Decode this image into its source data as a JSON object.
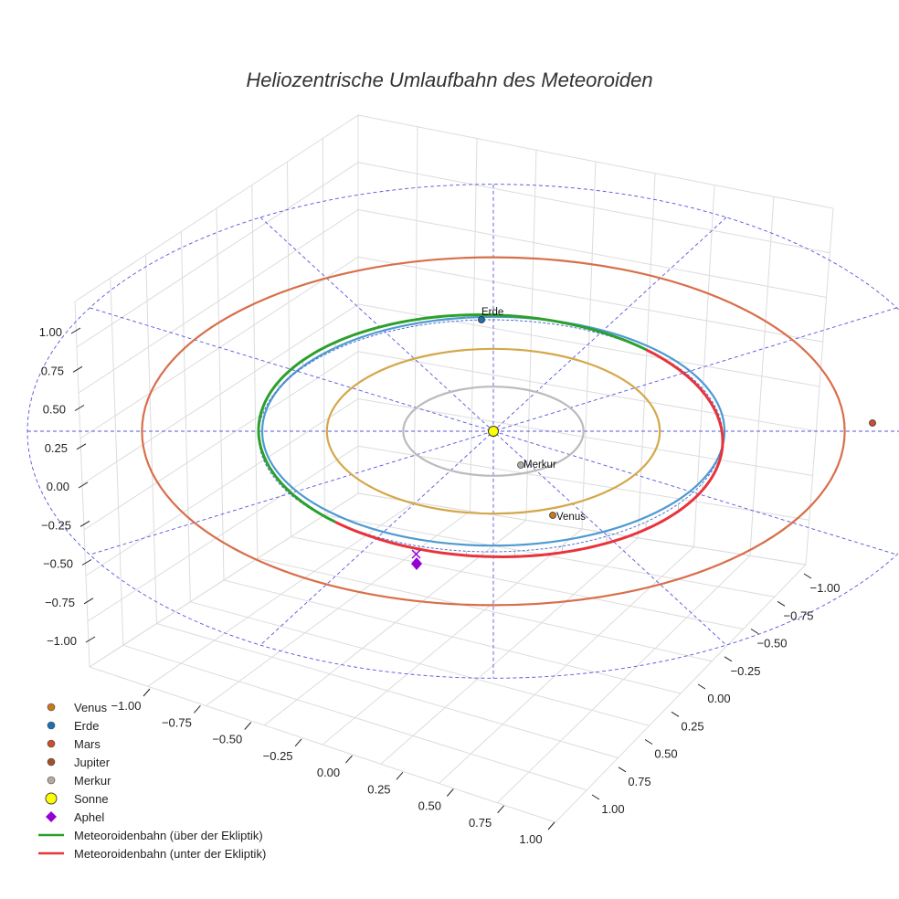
{
  "chart_data": {
    "type": "scatter3d",
    "title": "Heliozentrische Umlaufbahn des Meteoroiden",
    "axes": {
      "x": {
        "range": [
          -1.0,
          1.0
        ],
        "ticks": [
          "−1.00",
          "−0.75",
          "−0.50",
          "−0.25",
          "0.00",
          "0.25",
          "0.50",
          "0.75",
          "1.00"
        ]
      },
      "y": {
        "range": [
          -1.0,
          1.0
        ],
        "ticks": [
          "−1.00",
          "−0.75",
          "−0.50",
          "−0.25",
          "0.00",
          "0.25",
          "0.50",
          "0.75",
          "1.00"
        ]
      },
      "z": {
        "range": [
          -1.0,
          1.0
        ],
        "ticks": [
          "−1.00",
          "−0.75",
          "−0.50",
          "−0.25",
          "0.00",
          "0.25",
          "0.50",
          "0.75",
          "1.00"
        ]
      }
    },
    "grid": true,
    "ecliptic_reference": {
      "style": "dashed",
      "color": "#5555dd"
    },
    "orbits": [
      {
        "body": "Merkur",
        "radius_au": 0.39,
        "color": "#bbbbbb"
      },
      {
        "body": "Venus",
        "radius_au": 0.72,
        "color": "#d4a84a"
      },
      {
        "body": "Erde",
        "radius_au": 1.0,
        "color": "#4e9ad0"
      },
      {
        "body": "Mars",
        "radius_au": 1.52,
        "color": "#d86f4a"
      }
    ],
    "planet_labels": [
      "Erde",
      "Merkur",
      "Venus"
    ],
    "meteoroid_orbit": {
      "semi_major_axis_au": 1.0,
      "eccentricity": 0.08,
      "inclination_deg": 5
    },
    "legend_position": "bottom-left",
    "legend": [
      {
        "label": "Venus",
        "marker": "circle",
        "color": "#c8781e"
      },
      {
        "label": "Erde",
        "marker": "circle",
        "color": "#1f6fb4"
      },
      {
        "label": "Mars",
        "marker": "circle",
        "color": "#c8502d"
      },
      {
        "label": "Jupiter",
        "marker": "circle",
        "color": "#a0522d"
      },
      {
        "label": "Merkur",
        "marker": "circle",
        "color": "#b4aaa5"
      },
      {
        "label": "Sonne",
        "marker": "circle",
        "color": "#ffff00"
      },
      {
        "label": "Aphel",
        "marker": "diamond",
        "color": "#9400d3"
      },
      {
        "label": "Meteoroidenbahn (über der Ekliptik)",
        "marker": "line",
        "color": "#2ca02c"
      },
      {
        "label": "Meteoroidenbahn (unter der Ekliptik)",
        "marker": "line",
        "color": "#e8333a"
      }
    ]
  }
}
